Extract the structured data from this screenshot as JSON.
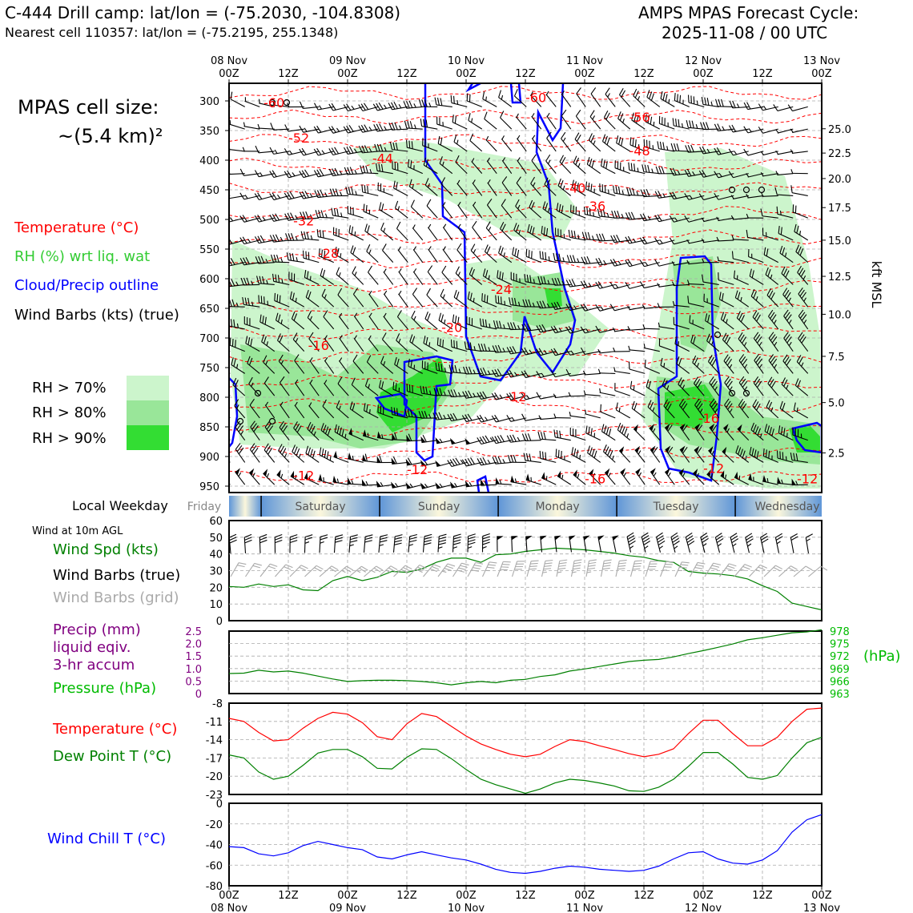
{
  "header": {
    "title_left": "C-444 Drill camp: lat/lon = (-75.2030, -104.8308)",
    "subtitle_left": "Nearest cell 110357: lat/lon = (-75.2195, 255.1348)",
    "title_right_1": "AMPS MPAS Forecast Cycle:",
    "title_right_2": "2025-11-08 / 00 UTC",
    "cell_size_1": "MPAS cell size:",
    "cell_size_2": "~(5.4 km)²"
  },
  "legend_top": {
    "temperature": "Temperature (°C)",
    "rh": "RH (%) wrt liq. wat",
    "cloud": "Cloud/Precip outline",
    "wind": "Wind Barbs (kts) (true)",
    "rh70": "RH > 70%",
    "rh80": "RH > 80%",
    "rh90": "RH > 90%"
  },
  "colors": {
    "temperature": "#ff0000",
    "rh_label": "#33cc33",
    "cloud": "#0000ff",
    "rh70": "#ccf5cc",
    "rh80": "#99e699",
    "rh90": "#33dd33",
    "wind_spd": "#008000",
    "grid_barb": "#aaaaaa",
    "precip": "#800080",
    "pressure": "#00bb00",
    "dewpoint": "#008000",
    "windchill": "#0000ff"
  },
  "time_axis": {
    "top_dates": [
      "08 Nov",
      "09 Nov",
      "10 Nov",
      "11 Nov",
      "12 Nov",
      "13 Nov"
    ],
    "top_hours": [
      "00Z",
      "12Z",
      "00Z",
      "12Z",
      "00Z",
      "12Z",
      "00Z",
      "12Z",
      "00Z",
      "12Z",
      "00Z"
    ],
    "bottom_hours": [
      "00Z",
      "12Z",
      "00Z",
      "12Z",
      "00Z",
      "12Z",
      "00Z",
      "12Z",
      "00Z",
      "12Z",
      "00Z"
    ],
    "bottom_dates": [
      "08 Nov",
      "09 Nov",
      "10 Nov",
      "11 Nov",
      "12 Nov",
      "13 Nov"
    ],
    "local_weekday_label": "Local Weekday",
    "weekdays": [
      "Friday",
      "Saturday",
      "Sunday",
      "Monday",
      "Tuesday",
      "Wednesday"
    ]
  },
  "chart_data": [
    {
      "type": "heatmap",
      "name": "time-height cross section",
      "y_axis": "pressure (hPa)",
      "y_ticks": [
        300,
        350,
        400,
        450,
        500,
        550,
        600,
        650,
        700,
        750,
        800,
        850,
        900,
        950
      ],
      "right_axis_label": "kft MSL",
      "right_ticks": [
        "25.0",
        "22.5",
        "20.0",
        "17.5",
        "15.0",
        "12.5",
        "10.0",
        "7.5",
        "5.0",
        "2.5"
      ],
      "right_tick_pressures": [
        347,
        388,
        431,
        480,
        535,
        596,
        660,
        731,
        809,
        894
      ],
      "x_range_hours": [
        0,
        120
      ],
      "temperature_contour_labels": [
        {
          "label": "-60",
          "t": 7,
          "p": 311
        },
        {
          "label": "-52",
          "t": 12,
          "p": 370
        },
        {
          "label": "-44",
          "t": 29,
          "p": 405
        },
        {
          "label": "-32",
          "t": 13,
          "p": 510
        },
        {
          "label": "-28",
          "t": 18,
          "p": 565
        },
        {
          "label": "-20",
          "t": 43,
          "p": 690
        },
        {
          "label": "-16",
          "t": 16,
          "p": 720
        },
        {
          "label": "-24",
          "t": 53,
          "p": 626
        },
        {
          "label": "-60",
          "t": 60,
          "p": 302
        },
        {
          "label": "-56",
          "t": 81,
          "p": 335
        },
        {
          "label": "-48",
          "t": 81,
          "p": 392
        },
        {
          "label": "-40",
          "t": 68,
          "p": 455
        },
        {
          "label": "-36",
          "t": 72,
          "p": 485
        },
        {
          "label": "-12",
          "t": 56,
          "p": 807
        },
        {
          "label": "-16",
          "t": 95,
          "p": 843
        },
        {
          "label": "-12",
          "t": 36,
          "p": 930
        },
        {
          "label": "-12",
          "t": 13,
          "p": 940
        },
        {
          "label": "-16",
          "t": 72,
          "p": 945
        },
        {
          "label": "-12",
          "t": 96,
          "p": 928
        },
        {
          "label": "-12",
          "t": 115,
          "p": 945
        }
      ]
    },
    {
      "type": "line",
      "name": "wind",
      "ylim": [
        0,
        60
      ],
      "y_ticks": [
        0,
        10,
        20,
        30,
        40,
        50,
        60
      ],
      "x_hours": [
        0,
        3,
        6,
        9,
        12,
        15,
        18,
        21,
        24,
        27,
        30,
        33,
        36,
        39,
        42,
        45,
        48,
        51,
        54,
        57,
        60,
        63,
        66,
        69,
        72,
        75,
        78,
        81,
        84,
        87,
        90,
        93,
        96,
        99,
        102,
        105,
        108,
        111,
        114,
        117,
        120
      ],
      "series": [
        {
          "name": "Wind Spd (kts)",
          "values": [
            20.5,
            20,
            22,
            20.5,
            21.5,
            18.5,
            18,
            24,
            26.5,
            24,
            26,
            29.5,
            29,
            31,
            35,
            37.5,
            37.5,
            35,
            39.5,
            40,
            41.5,
            42.5,
            43.5,
            43,
            42.5,
            41.5,
            40.5,
            39,
            38,
            36,
            35,
            29.5,
            28.5,
            28,
            27,
            25,
            21,
            17.5,
            10.5,
            8.5,
            6.5
          ]
        }
      ]
    },
    {
      "type": "line",
      "name": "precip-pressure",
      "y_left_label": "mm",
      "y_left_ticks": [
        "0",
        "0.5",
        "1.0",
        "1.5",
        "2.0",
        "2.5"
      ],
      "y_right_ticks": [
        "963",
        "966",
        "969",
        "972",
        "975",
        "978"
      ],
      "ylim_right": [
        963,
        978
      ],
      "x_hours": [
        0,
        3,
        6,
        9,
        12,
        15,
        18,
        21,
        24,
        27,
        30,
        33,
        36,
        39,
        42,
        45,
        48,
        51,
        54,
        57,
        60,
        63,
        66,
        69,
        72,
        75,
        78,
        81,
        84,
        87,
        90,
        93,
        96,
        99,
        102,
        105,
        108,
        111,
        114,
        117,
        120
      ],
      "series": [
        {
          "name": "Pressure (hPa)",
          "values": [
            967.8,
            967.9,
            968.6,
            968.2,
            968.4,
            967.9,
            967.2,
            966.5,
            965.9,
            966.1,
            966.2,
            966.2,
            966.1,
            965.9,
            965.6,
            965.1,
            965.6,
            965.9,
            965.6,
            966.2,
            966.4,
            967.1,
            967.5,
            968.4,
            968.9,
            969.5,
            970.1,
            970.7,
            971.0,
            971.2,
            971.8,
            972.6,
            973.3,
            974.1,
            974.9,
            975.9,
            976.4,
            977.0,
            977.6,
            977.8,
            978.3
          ]
        }
      ]
    },
    {
      "type": "line",
      "name": "temperature-dewpoint",
      "ylim": [
        -23,
        -8
      ],
      "y_ticks": [
        -23,
        -20,
        -17,
        -14,
        -11,
        -8
      ],
      "x_hours": [
        0,
        3,
        6,
        9,
        12,
        15,
        18,
        21,
        24,
        27,
        30,
        33,
        36,
        39,
        42,
        45,
        48,
        51,
        54,
        57,
        60,
        63,
        66,
        69,
        72,
        75,
        78,
        81,
        84,
        87,
        90,
        93,
        96,
        99,
        102,
        105,
        108,
        111,
        114,
        117,
        120
      ],
      "series": [
        {
          "name": "Temperature (°C)",
          "values": [
            -10.5,
            -11,
            -12.8,
            -14.2,
            -14.0,
            -12.1,
            -10.5,
            -9.5,
            -9.8,
            -11.2,
            -13.5,
            -14.0,
            -11.4,
            -9.7,
            -10.2,
            -11.8,
            -13.4,
            -14.7,
            -15.6,
            -16.4,
            -16.8,
            -16.4,
            -15.1,
            -14.0,
            -14.3,
            -15.0,
            -15.6,
            -16.3,
            -16.8,
            -16.4,
            -15.5,
            -13.0,
            -10.8,
            -10.8,
            -13.0,
            -15.0,
            -15.0,
            -13.6,
            -11.0,
            -9.0,
            -8.8
          ]
        },
        {
          "name": "Dew Point T (°C)",
          "values": [
            -16.5,
            -17.0,
            -19.3,
            -20.5,
            -20.0,
            -18.2,
            -16.2,
            -15.6,
            -15.6,
            -16.8,
            -18.7,
            -18.8,
            -16.9,
            -15.5,
            -15.6,
            -17.1,
            -18.9,
            -20.5,
            -21.4,
            -22.1,
            -22.8,
            -22.1,
            -21.1,
            -20.5,
            -20.7,
            -21.1,
            -21.6,
            -22.4,
            -22.5,
            -21.8,
            -20.5,
            -18.4,
            -16.1,
            -16.1,
            -18.0,
            -20.2,
            -20.5,
            -19.9,
            -17.0,
            -14.5,
            -13.6
          ]
        }
      ]
    },
    {
      "type": "line",
      "name": "wind-chill",
      "ylim": [
        -80,
        0
      ],
      "y_ticks": [
        -80,
        -60,
        -40,
        -20,
        0
      ],
      "x_hours": [
        0,
        3,
        6,
        9,
        12,
        15,
        18,
        21,
        24,
        27,
        30,
        33,
        36,
        39,
        42,
        45,
        48,
        51,
        54,
        57,
        60,
        63,
        66,
        69,
        72,
        75,
        78,
        81,
        84,
        87,
        90,
        93,
        96,
        99,
        102,
        105,
        108,
        111,
        114,
        117,
        120
      ],
      "series": [
        {
          "name": "Wind Chill T (°C)",
          "values": [
            -42,
            -43,
            -49,
            -51,
            -48,
            -41,
            -37,
            -40,
            -43,
            -45,
            -52,
            -54,
            -50,
            -47,
            -50,
            -53,
            -55,
            -59,
            -64,
            -67,
            -68,
            -66,
            -63,
            -61,
            -62,
            -64,
            -65,
            -66,
            -65,
            -61,
            -54,
            -48,
            -47,
            -54,
            -58,
            -59,
            -55,
            -46,
            -28,
            -16,
            -11
          ]
        }
      ]
    }
  ],
  "bottom_legends": {
    "wind_at": "Wind at 10m AGL",
    "wind_spd": "Wind Spd (kts)",
    "wind_true": "Wind Barbs (true)",
    "wind_grid": "Wind Barbs (grid)",
    "precip_1": "Precip (mm)",
    "precip_2": "liquid eqiv.",
    "precip_3": "3-hr accum",
    "pressure": "Pressure (hPa)",
    "hpa": "(hPa)",
    "temperature": "Temperature (°C)",
    "dewpoint": "Dew Point T (°C)",
    "windchill": "Wind Chill T (°C)"
  }
}
